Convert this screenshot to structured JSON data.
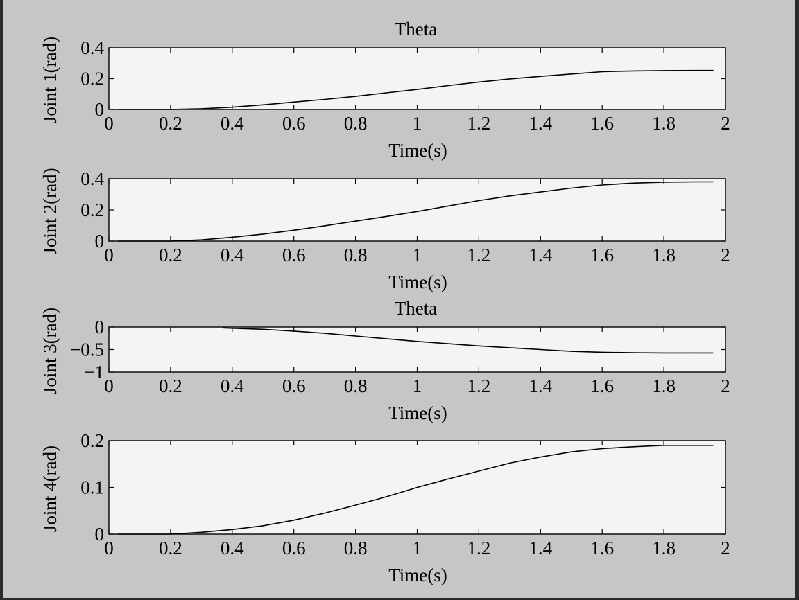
{
  "chart_data": [
    {
      "type": "line",
      "title": "Theta",
      "xlabel": "Time(s)",
      "ylabel": "Joint 1(rad)",
      "xlim": [
        0,
        2
      ],
      "ylim": [
        0,
        0.4
      ],
      "xticks": [
        "0",
        "0.2",
        "0.4",
        "0.6",
        "0.8",
        "1",
        "1.2",
        "1.4",
        "1.6",
        "1.8",
        "2"
      ],
      "yticks": [
        "0",
        "0.2",
        "0.4"
      ],
      "series": [
        {
          "x": [
            0.03,
            0.2,
            0.3,
            0.4,
            0.5,
            0.6,
            0.7,
            0.8,
            0.9,
            1.0,
            1.1,
            1.2,
            1.3,
            1.4,
            1.5,
            1.6,
            1.7,
            1.8,
            1.9,
            1.96
          ],
          "y": [
            0.0,
            0.0,
            0.005,
            0.015,
            0.03,
            0.048,
            0.065,
            0.085,
            0.108,
            0.13,
            0.155,
            0.178,
            0.198,
            0.215,
            0.23,
            0.245,
            0.25,
            0.252,
            0.253,
            0.253
          ]
        }
      ],
      "grid": false
    },
    {
      "type": "line",
      "title": "",
      "xlabel": "Time(s)",
      "ylabel": "Joint 2(rad)",
      "xlim": [
        0,
        2
      ],
      "ylim": [
        0,
        0.4
      ],
      "xticks": [
        "0",
        "0.2",
        "0.4",
        "0.6",
        "0.8",
        "1",
        "1.2",
        "1.4",
        "1.6",
        "1.8",
        "2"
      ],
      "yticks": [
        "0",
        "0.2",
        "0.4"
      ],
      "series": [
        {
          "x": [
            0.03,
            0.2,
            0.3,
            0.4,
            0.5,
            0.6,
            0.7,
            0.8,
            0.9,
            1.0,
            1.1,
            1.2,
            1.3,
            1.4,
            1.5,
            1.6,
            1.7,
            1.8,
            1.9,
            1.96
          ],
          "y": [
            0.0,
            0.0,
            0.008,
            0.025,
            0.045,
            0.07,
            0.098,
            0.128,
            0.158,
            0.19,
            0.225,
            0.26,
            0.29,
            0.315,
            0.34,
            0.36,
            0.372,
            0.378,
            0.38,
            0.38
          ]
        }
      ],
      "grid": false
    },
    {
      "type": "line",
      "title": "Theta",
      "xlabel": "Time(s)",
      "ylabel": "Joint 3(rad)",
      "xlim": [
        0,
        2
      ],
      "ylim": [
        -1,
        0
      ],
      "xticks": [
        "0",
        "0.2",
        "0.4",
        "0.6",
        "0.8",
        "1",
        "1.2",
        "1.4",
        "1.6",
        "1.8",
        "2"
      ],
      "yticks": [
        "−1",
        "−0.5",
        "0"
      ],
      "ytick_values": [
        -1,
        -0.5,
        0
      ],
      "series": [
        {
          "x": [
            0.37,
            0.5,
            0.6,
            0.7,
            0.8,
            0.9,
            1.0,
            1.1,
            1.2,
            1.3,
            1.4,
            1.5,
            1.6,
            1.7,
            1.8,
            1.9,
            1.96
          ],
          "y": [
            -0.02,
            -0.05,
            -0.09,
            -0.14,
            -0.2,
            -0.26,
            -0.32,
            -0.37,
            -0.42,
            -0.46,
            -0.5,
            -0.54,
            -0.56,
            -0.57,
            -0.575,
            -0.575,
            -0.575
          ]
        }
      ],
      "grid": false
    },
    {
      "type": "line",
      "title": "",
      "xlabel": "Time(s)",
      "ylabel": "Joint 4(rad)",
      "xlim": [
        0,
        2
      ],
      "ylim": [
        0,
        0.2
      ],
      "xticks": [
        "0",
        "0.2",
        "0.4",
        "0.6",
        "0.8",
        "1",
        "1.2",
        "1.4",
        "1.6",
        "1.8",
        "2"
      ],
      "yticks": [
        "0",
        "0.1",
        "0.2"
      ],
      "series": [
        {
          "x": [
            0.03,
            0.2,
            0.3,
            0.4,
            0.5,
            0.6,
            0.7,
            0.8,
            0.9,
            1.0,
            1.1,
            1.2,
            1.3,
            1.4,
            1.5,
            1.6,
            1.7,
            1.8,
            1.9,
            1.96
          ],
          "y": [
            0.0,
            0.0,
            0.004,
            0.01,
            0.018,
            0.03,
            0.045,
            0.062,
            0.08,
            0.1,
            0.118,
            0.135,
            0.152,
            0.165,
            0.176,
            0.183,
            0.187,
            0.19,
            0.19,
            0.19
          ]
        }
      ],
      "grid": false
    }
  ]
}
